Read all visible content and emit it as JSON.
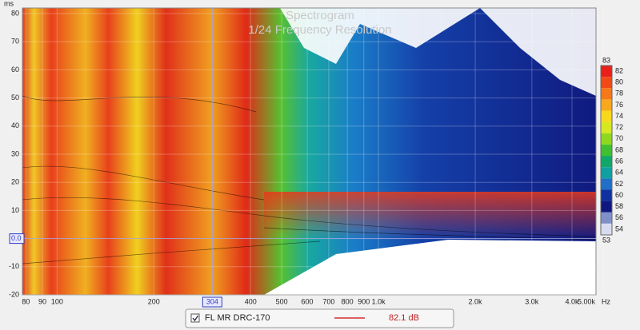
{
  "chart_data": {
    "type": "spectrogram",
    "title": "Spectrogram",
    "subtitle": "1/24 Frequency Resolution",
    "y_label": "ms",
    "x_label": "Hz",
    "log_x": true,
    "grid": true,
    "xlim": [
      78,
      4750
    ],
    "xticks": [
      80,
      90,
      100,
      200,
      400,
      500,
      600,
      700,
      800,
      900,
      {
        "value": 1000,
        "label": "1.0k"
      },
      {
        "value": 2000,
        "label": "2.0k"
      },
      {
        "value": 3000,
        "label": "3.0k"
      },
      {
        "value": 4000,
        "label": "4.0k"
      },
      {
        "value": 5000,
        "label": "5.00k"
      }
    ],
    "ylim": [
      -20,
      82
    ],
    "yticks": [
      -20,
      -10,
      0,
      10,
      20,
      30,
      40,
      50,
      60,
      70,
      80
    ],
    "cursor": {
      "x": 304,
      "y": {
        "value": 0,
        "label": "0.0"
      }
    },
    "colorbar": {
      "lim": [
        53,
        83
      ],
      "min_label": 53,
      "max_label": 83,
      "ticks": [
        82,
        80,
        78,
        76,
        74,
        72,
        70,
        68,
        66,
        64,
        62,
        60,
        58,
        56,
        54
      ],
      "colors": [
        "#e8201a",
        "#f04a18",
        "#f5781a",
        "#f8a81c",
        "#f8d81c",
        "#d8e820",
        "#90d820",
        "#40c030",
        "#10a868",
        "#10a0a0",
        "#2070c8",
        "#1030a0",
        "#101880",
        "#8090c8",
        "#d8dcf0"
      ]
    },
    "legend": {
      "name": "FL MR DRC-170",
      "color": "#d03030",
      "value_label": "82.1 dB"
    }
  }
}
